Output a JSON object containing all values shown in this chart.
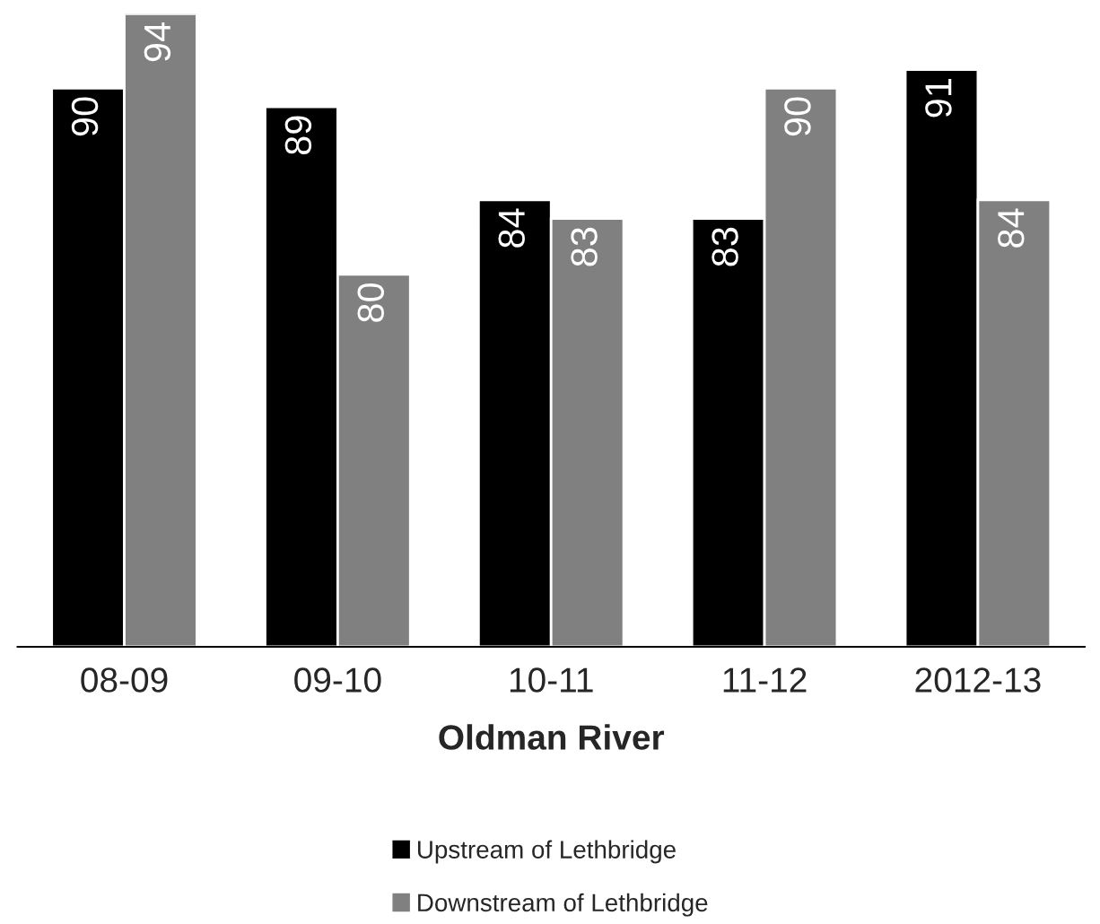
{
  "chart_data": {
    "type": "bar",
    "xlabel": "Oldman River",
    "categories": [
      "08-09",
      "09-10",
      "10-11",
      "11-12",
      "2012-13"
    ],
    "series": [
      {
        "name": "Upstream of Lethbridge",
        "color": "#000000",
        "values": [
          90,
          89,
          84,
          83,
          91
        ]
      },
      {
        "name": "Downstream of Lethbridge",
        "color": "#808080",
        "values": [
          94,
          80,
          83,
          90,
          84
        ]
      }
    ],
    "ylim": [
      60,
      94
    ],
    "tick_labels": "x",
    "data_labels": true,
    "legend": "bottom",
    "grid": false
  }
}
